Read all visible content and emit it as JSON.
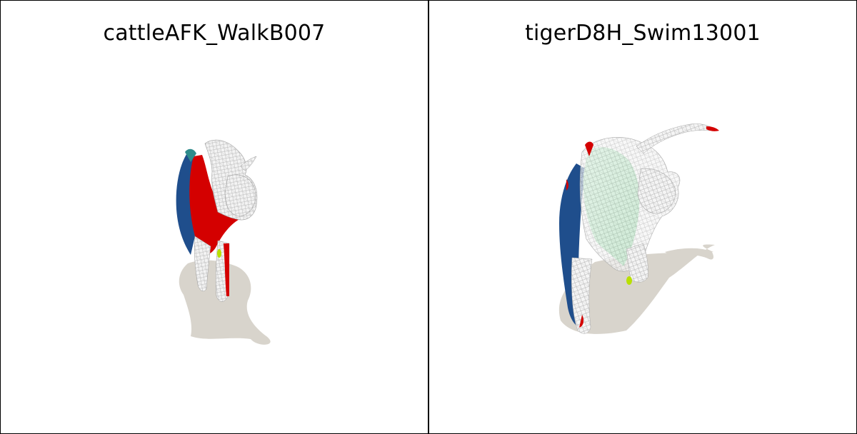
{
  "panels": [
    {
      "title": "cattleAFK_WalkB007"
    },
    {
      "title": "tigerD8H_Swim13001"
    }
  ],
  "colors": {
    "background": "#ffffff",
    "border": "#000000",
    "shadow": "#d8d4cc",
    "mesh_wire": "#e6e6e6",
    "red": "#d40000",
    "blue": "#1f4e8c",
    "green": "#7fd28a",
    "yellow_green": "#b9e000"
  }
}
